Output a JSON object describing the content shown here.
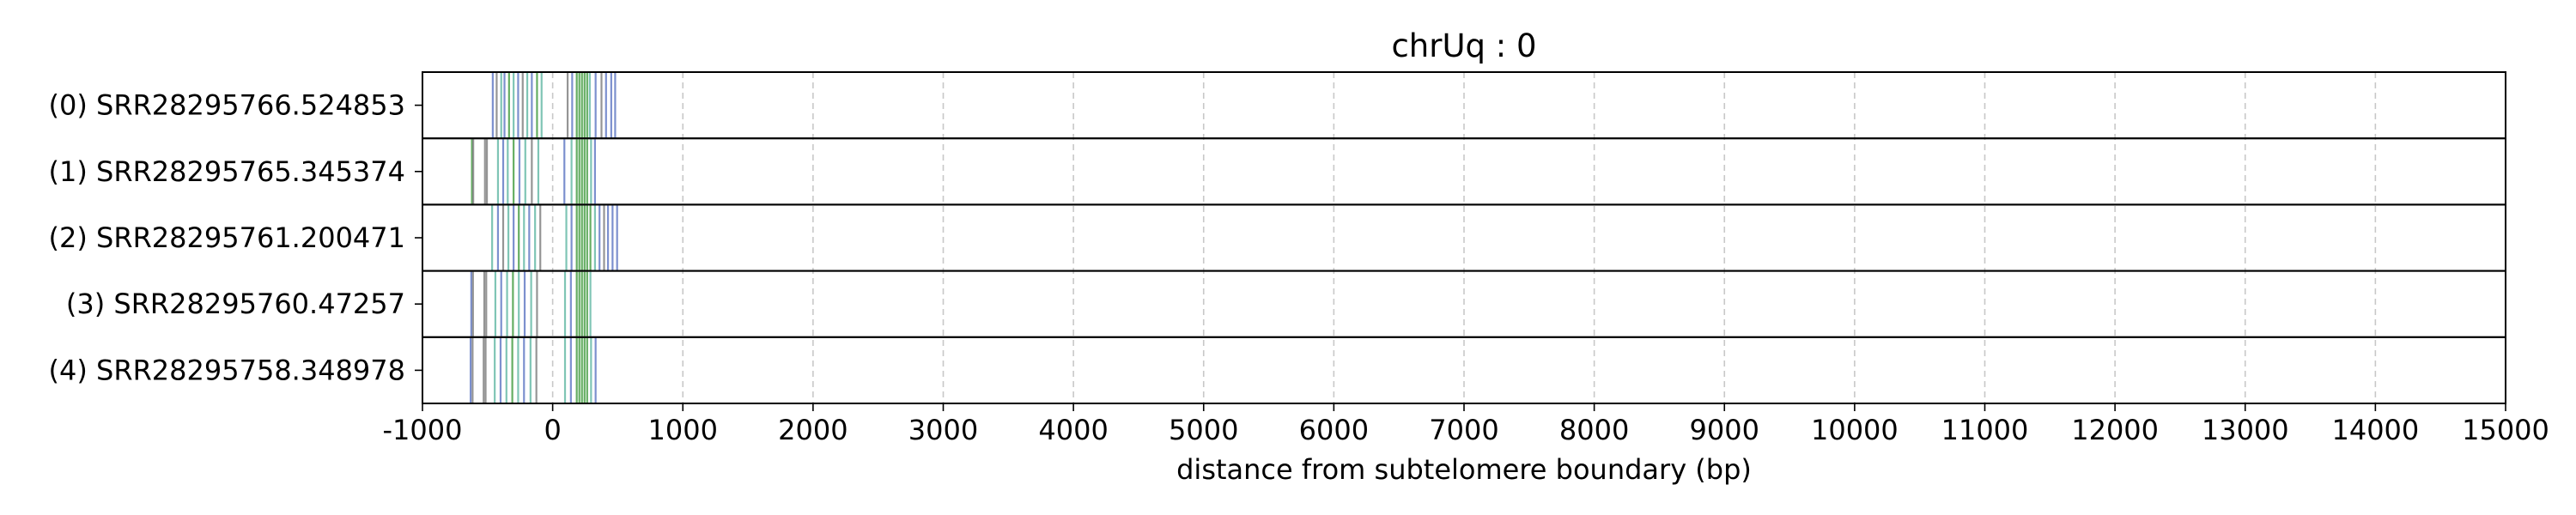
{
  "chart_data": {
    "type": "event-track",
    "title": "chrUq : 0",
    "xlabel": "distance from subtelomere boundary (bp)",
    "ylabel": "",
    "xlim": [
      -1000,
      15000
    ],
    "x_ticks": [
      -1000,
      0,
      1000,
      2000,
      3000,
      4000,
      5000,
      6000,
      7000,
      8000,
      9000,
      10000,
      11000,
      12000,
      13000,
      14000,
      15000
    ],
    "x_tick_labels": [
      "-1000",
      "0",
      "1000",
      "2000",
      "3000",
      "4000",
      "5000",
      "6000",
      "7000",
      "8000",
      "9000",
      "10000",
      "11000",
      "12000",
      "13000",
      "14000",
      "15000"
    ],
    "grid": "vertical dashed",
    "colors": {
      "blue": "#5b74c2",
      "green": "#3f9a3c",
      "teal": "#5fb6a2",
      "gray": "#7a7a7a"
    },
    "series": [
      {
        "label": "(0) SRR28295766.524853",
        "marks": [
          {
            "x": -460,
            "c": "blue"
          },
          {
            "x": -430,
            "c": "gray"
          },
          {
            "x": -395,
            "c": "teal"
          },
          {
            "x": -370,
            "c": "blue"
          },
          {
            "x": -335,
            "c": "green"
          },
          {
            "x": -300,
            "c": "teal"
          },
          {
            "x": -265,
            "c": "blue"
          },
          {
            "x": -230,
            "c": "gray"
          },
          {
            "x": -195,
            "c": "teal"
          },
          {
            "x": -160,
            "c": "blue"
          },
          {
            "x": -120,
            "c": "green"
          },
          {
            "x": -85,
            "c": "teal"
          },
          {
            "x": 115,
            "c": "gray"
          },
          {
            "x": 150,
            "c": "blue"
          },
          {
            "x": 185,
            "c": "green"
          },
          {
            "x": 205,
            "c": "green"
          },
          {
            "x": 225,
            "c": "green"
          },
          {
            "x": 245,
            "c": "green"
          },
          {
            "x": 265,
            "c": "green"
          },
          {
            "x": 285,
            "c": "teal"
          },
          {
            "x": 330,
            "c": "blue"
          },
          {
            "x": 375,
            "c": "gray"
          },
          {
            "x": 410,
            "c": "blue"
          },
          {
            "x": 450,
            "c": "blue"
          },
          {
            "x": 480,
            "c": "blue"
          }
        ]
      },
      {
        "label": "(1) SRR28295765.345374",
        "marks": [
          {
            "x": -620,
            "c": "green"
          },
          {
            "x": -610,
            "c": "gray"
          },
          {
            "x": -520,
            "c": "gray"
          },
          {
            "x": -505,
            "c": "gray"
          },
          {
            "x": -420,
            "c": "teal"
          },
          {
            "x": -380,
            "c": "blue"
          },
          {
            "x": -345,
            "c": "teal"
          },
          {
            "x": -300,
            "c": "green"
          },
          {
            "x": -255,
            "c": "blue"
          },
          {
            "x": -210,
            "c": "teal"
          },
          {
            "x": -160,
            "c": "gray"
          },
          {
            "x": -110,
            "c": "teal"
          },
          {
            "x": 90,
            "c": "blue"
          },
          {
            "x": 145,
            "c": "teal"
          },
          {
            "x": 185,
            "c": "green"
          },
          {
            "x": 205,
            "c": "green"
          },
          {
            "x": 225,
            "c": "green"
          },
          {
            "x": 245,
            "c": "green"
          },
          {
            "x": 265,
            "c": "green"
          },
          {
            "x": 295,
            "c": "teal"
          },
          {
            "x": 325,
            "c": "blue"
          }
        ]
      },
      {
        "label": "(2) SRR28295761.200471",
        "marks": [
          {
            "x": -465,
            "c": "teal"
          },
          {
            "x": -420,
            "c": "blue"
          },
          {
            "x": -380,
            "c": "gray"
          },
          {
            "x": -340,
            "c": "teal"
          },
          {
            "x": -300,
            "c": "blue"
          },
          {
            "x": -260,
            "c": "green"
          },
          {
            "x": -220,
            "c": "teal"
          },
          {
            "x": -180,
            "c": "blue"
          },
          {
            "x": -135,
            "c": "teal"
          },
          {
            "x": -95,
            "c": "gray"
          },
          {
            "x": 105,
            "c": "teal"
          },
          {
            "x": 145,
            "c": "blue"
          },
          {
            "x": 185,
            "c": "green"
          },
          {
            "x": 205,
            "c": "green"
          },
          {
            "x": 225,
            "c": "green"
          },
          {
            "x": 245,
            "c": "green"
          },
          {
            "x": 265,
            "c": "green"
          },
          {
            "x": 290,
            "c": "green"
          },
          {
            "x": 325,
            "c": "teal"
          },
          {
            "x": 360,
            "c": "blue"
          },
          {
            "x": 395,
            "c": "gray"
          },
          {
            "x": 425,
            "c": "blue"
          },
          {
            "x": 460,
            "c": "blue"
          },
          {
            "x": 495,
            "c": "blue"
          }
        ]
      },
      {
        "label": "(3) SRR28295760.47257",
        "marks": [
          {
            "x": -625,
            "c": "blue"
          },
          {
            "x": -612,
            "c": "gray"
          },
          {
            "x": -525,
            "c": "gray"
          },
          {
            "x": -510,
            "c": "gray"
          },
          {
            "x": -440,
            "c": "teal"
          },
          {
            "x": -395,
            "c": "blue"
          },
          {
            "x": -350,
            "c": "teal"
          },
          {
            "x": -305,
            "c": "green"
          },
          {
            "x": -260,
            "c": "teal"
          },
          {
            "x": -215,
            "c": "blue"
          },
          {
            "x": -165,
            "c": "teal"
          },
          {
            "x": -120,
            "c": "gray"
          },
          {
            "x": 95,
            "c": "teal"
          },
          {
            "x": 140,
            "c": "blue"
          },
          {
            "x": 185,
            "c": "green"
          },
          {
            "x": 205,
            "c": "green"
          },
          {
            "x": 225,
            "c": "green"
          },
          {
            "x": 245,
            "c": "green"
          },
          {
            "x": 265,
            "c": "green"
          },
          {
            "x": 290,
            "c": "teal"
          }
        ]
      },
      {
        "label": "(4) SRR28295758.348978",
        "marks": [
          {
            "x": -630,
            "c": "blue"
          },
          {
            "x": -615,
            "c": "gray"
          },
          {
            "x": -530,
            "c": "gray"
          },
          {
            "x": -515,
            "c": "gray"
          },
          {
            "x": -445,
            "c": "teal"
          },
          {
            "x": -400,
            "c": "blue"
          },
          {
            "x": -355,
            "c": "teal"
          },
          {
            "x": -310,
            "c": "green"
          },
          {
            "x": -265,
            "c": "teal"
          },
          {
            "x": -220,
            "c": "blue"
          },
          {
            "x": -170,
            "c": "teal"
          },
          {
            "x": -125,
            "c": "gray"
          },
          {
            "x": 95,
            "c": "teal"
          },
          {
            "x": 140,
            "c": "blue"
          },
          {
            "x": 185,
            "c": "green"
          },
          {
            "x": 205,
            "c": "green"
          },
          {
            "x": 225,
            "c": "green"
          },
          {
            "x": 245,
            "c": "green"
          },
          {
            "x": 265,
            "c": "green"
          },
          {
            "x": 295,
            "c": "teal"
          },
          {
            "x": 330,
            "c": "blue"
          }
        ]
      }
    ]
  }
}
